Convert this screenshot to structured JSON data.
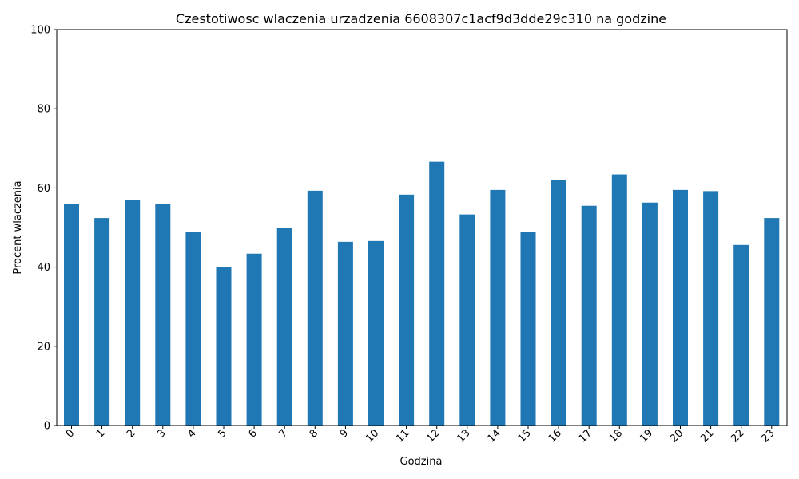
{
  "chart_data": {
    "type": "bar",
    "title": "Czestotiwosc wlaczenia urzadzenia 6608307c1acf9d3dde29c310 na godzine",
    "xlabel": "Godzina",
    "ylabel": "Procent wlaczenia",
    "ylim": [
      0,
      100
    ],
    "yticks": [
      0,
      20,
      40,
      60,
      80,
      100
    ],
    "grid": false,
    "legend": "none",
    "bar_color": "#1f77b4",
    "categories": [
      "0",
      "1",
      "2",
      "3",
      "4",
      "5",
      "6",
      "7",
      "8",
      "9",
      "10",
      "11",
      "12",
      "13",
      "14",
      "15",
      "16",
      "17",
      "18",
      "19",
      "20",
      "21",
      "22",
      "23"
    ],
    "values": [
      55.9,
      52.4,
      56.9,
      55.9,
      48.8,
      40.0,
      43.4,
      50.0,
      59.3,
      46.4,
      46.6,
      58.3,
      66.6,
      53.3,
      59.5,
      48.8,
      62.0,
      55.5,
      63.4,
      56.3,
      59.5,
      59.2,
      45.6,
      52.4
    ]
  }
}
